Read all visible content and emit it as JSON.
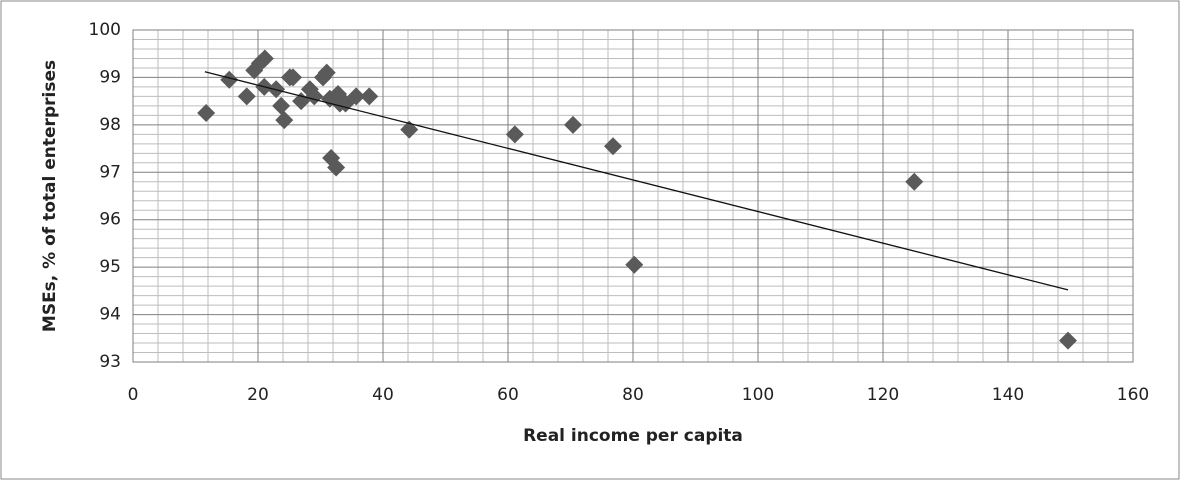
{
  "chart_data": {
    "type": "scatter",
    "x_label": "Real income per capita",
    "y_label": "MSEs, % of total enterprises",
    "color": "#5a5a5a",
    "marker": "diamond",
    "grid": true,
    "minor_grid": {
      "x": 5,
      "y": 5
    },
    "xlim": [
      0,
      160
    ],
    "xticks": [
      0,
      20,
      40,
      60,
      80,
      100,
      120,
      140,
      160
    ],
    "ylim": [
      93,
      100
    ],
    "yticks": [
      93,
      94,
      95,
      96,
      97,
      98,
      99,
      100
    ],
    "x": [
      11.7,
      15.4,
      18.2,
      19.4,
      20.3,
      21.1,
      21.0,
      22.9,
      23.7,
      24.2,
      25.1,
      25.6,
      26.9,
      28.3,
      29.0,
      30.4,
      31.0,
      31.5,
      31.7,
      32.5,
      32.8,
      33.1,
      34.0,
      35.7,
      37.8,
      44.2,
      61.1,
      70.4,
      76.8,
      80.2,
      125.0,
      149.6
    ],
    "y": [
      98.25,
      98.95,
      98.6,
      99.15,
      99.3,
      99.4,
      98.8,
      98.75,
      98.4,
      98.1,
      99.0,
      99.0,
      98.5,
      98.75,
      98.6,
      99.0,
      99.1,
      98.55,
      97.3,
      97.1,
      98.65,
      98.45,
      98.45,
      98.6,
      98.6,
      97.9,
      97.8,
      98.0,
      97.55,
      95.05,
      96.8,
      93.45
    ],
    "trendline": {
      "x": [
        11.5,
        149.6
      ],
      "y": [
        99.12,
        94.52
      ]
    }
  }
}
